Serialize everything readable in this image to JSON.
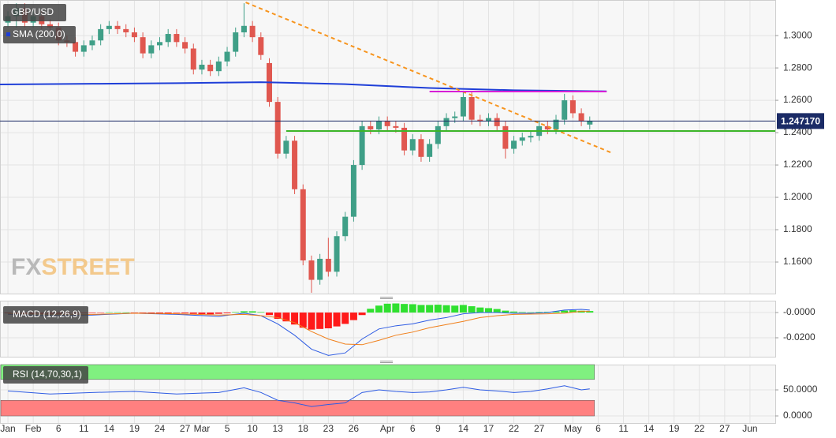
{
  "chart_data": [
    {
      "type": "candlestick",
      "title": "GBP/USD",
      "x": [
        0,
        1,
        2,
        3,
        4,
        5,
        6,
        7,
        8,
        9,
        10,
        11,
        12,
        13,
        14,
        15,
        16,
        17,
        18,
        19,
        20,
        21,
        22,
        23,
        24,
        25,
        26,
        27,
        28,
        29,
        30,
        31,
        32,
        33,
        34,
        35,
        36,
        37,
        38,
        39,
        40,
        41,
        42,
        43,
        44,
        45,
        46,
        47,
        48,
        49,
        50,
        51,
        52,
        53,
        54,
        55,
        56,
        57,
        58,
        59,
        60,
        61,
        62,
        63,
        64,
        65,
        66,
        67,
        68,
        69
      ],
      "open": [
        1.308,
        1.312,
        1.317,
        1.308,
        1.312,
        1.307,
        1.305,
        1.297,
        1.296,
        1.29,
        1.294,
        1.297,
        1.304,
        1.306,
        1.304,
        1.302,
        1.299,
        1.289,
        1.294,
        1.296,
        1.301,
        1.296,
        1.292,
        1.279,
        1.282,
        1.278,
        1.284,
        1.29,
        1.302,
        1.306,
        1.299,
        1.283,
        1.259,
        1.227,
        1.235,
        1.205,
        1.161,
        1.149,
        1.162,
        1.154,
        1.176,
        1.188,
        1.22,
        1.244,
        1.242,
        1.247,
        1.244,
        1.243,
        1.229,
        1.236,
        1.225,
        1.233,
        1.244,
        1.249,
        1.25,
        1.262,
        1.248,
        1.247,
        1.249,
        1.244,
        1.23,
        1.235,
        1.237,
        1.238,
        1.244,
        1.242,
        1.248,
        1.26,
        1.252,
        1.245
      ],
      "high": [
        1.315,
        1.32,
        1.32,
        1.315,
        1.315,
        1.31,
        1.308,
        1.3,
        1.299,
        1.297,
        1.3,
        1.307,
        1.309,
        1.309,
        1.307,
        1.305,
        1.302,
        1.297,
        1.299,
        1.304,
        1.304,
        1.299,
        1.295,
        1.285,
        1.285,
        1.287,
        1.293,
        1.305,
        1.32,
        1.309,
        1.302,
        1.286,
        1.262,
        1.238,
        1.238,
        1.208,
        1.164,
        1.165,
        1.175,
        1.179,
        1.191,
        1.223,
        1.247,
        1.247,
        1.25,
        1.25,
        1.247,
        1.246,
        1.239,
        1.239,
        1.236,
        1.247,
        1.252,
        1.253,
        1.265,
        1.265,
        1.251,
        1.252,
        1.252,
        1.247,
        1.238,
        1.24,
        1.241,
        1.247,
        1.247,
        1.251,
        1.264,
        1.263,
        1.255,
        1.25
      ],
      "low": [
        1.305,
        1.305,
        1.305,
        1.305,
        1.304,
        1.302,
        1.294,
        1.293,
        1.287,
        1.287,
        1.291,
        1.294,
        1.301,
        1.301,
        1.299,
        1.296,
        1.286,
        1.286,
        1.291,
        1.293,
        1.293,
        1.289,
        1.276,
        1.276,
        1.275,
        1.275,
        1.281,
        1.287,
        1.299,
        1.296,
        1.285,
        1.256,
        1.224,
        1.224,
        1.202,
        1.158,
        1.141,
        1.146,
        1.151,
        1.151,
        1.173,
        1.185,
        1.217,
        1.239,
        1.239,
        1.241,
        1.24,
        1.226,
        1.226,
        1.222,
        1.222,
        1.23,
        1.241,
        1.246,
        1.247,
        1.245,
        1.244,
        1.244,
        1.241,
        1.224,
        1.227,
        1.232,
        1.234,
        1.235,
        1.239,
        1.239,
        1.245,
        1.249,
        1.244,
        1.242
      ],
      "close": [
        1.312,
        1.317,
        1.308,
        1.312,
        1.307,
        1.305,
        1.297,
        1.296,
        1.29,
        1.294,
        1.297,
        1.304,
        1.306,
        1.304,
        1.302,
        1.299,
        1.289,
        1.294,
        1.296,
        1.301,
        1.296,
        1.292,
        1.279,
        1.282,
        1.278,
        1.284,
        1.29,
        1.302,
        1.306,
        1.299,
        1.288,
        1.259,
        1.227,
        1.235,
        1.205,
        1.161,
        1.149,
        1.162,
        1.154,
        1.176,
        1.188,
        1.22,
        1.244,
        1.242,
        1.247,
        1.244,
        1.243,
        1.229,
        1.236,
        1.225,
        1.233,
        1.244,
        1.249,
        1.25,
        1.262,
        1.248,
        1.247,
        1.249,
        1.244,
        1.23,
        1.235,
        1.237,
        1.238,
        1.244,
        1.242,
        1.248,
        1.26,
        1.252,
        1.247,
        1.2472
      ],
      "up_color": "#3f9f87",
      "down_color": "#e0574f",
      "xlim": [
        -0.94,
        91.0
      ],
      "xticks": [
        {
          "value": 0,
          "label": "Jan"
        },
        {
          "value": 3,
          "label": "Feb"
        },
        {
          "value": 6,
          "label": "6"
        },
        {
          "value": 9,
          "label": "11"
        },
        {
          "value": 12,
          "label": "14"
        },
        {
          "value": 15,
          "label": "19"
        },
        {
          "value": 18,
          "label": "24"
        },
        {
          "value": 21,
          "label": "27"
        },
        {
          "value": 23,
          "label": "Mar"
        },
        {
          "value": 26,
          "label": "5"
        },
        {
          "value": 29,
          "label": "10"
        },
        {
          "value": 32,
          "label": "13"
        },
        {
          "value": 35,
          "label": "18"
        },
        {
          "value": 38,
          "label": "23"
        },
        {
          "value": 41,
          "label": "26"
        },
        {
          "value": 45,
          "label": "Apr"
        },
        {
          "value": 48,
          "label": "6"
        },
        {
          "value": 51,
          "label": "9"
        },
        {
          "value": 54,
          "label": "14"
        },
        {
          "value": 57,
          "label": "17"
        },
        {
          "value": 60,
          "label": "22"
        },
        {
          "value": 63,
          "label": "27"
        },
        {
          "value": 67,
          "label": "May"
        },
        {
          "value": 70,
          "label": "6"
        },
        {
          "value": 73,
          "label": "11"
        },
        {
          "value": 76,
          "label": "14"
        },
        {
          "value": 79,
          "label": "19"
        },
        {
          "value": 82,
          "label": "22"
        },
        {
          "value": 85,
          "label": "27"
        },
        {
          "value": 88,
          "label": "Jun"
        }
      ],
      "ylim": [
        1.1405,
        1.322
      ],
      "yticks": [
        {
          "value": 1.3,
          "label": "1.3000"
        },
        {
          "value": 1.28,
          "label": "1.2800"
        },
        {
          "value": 1.26,
          "label": "1.2600"
        },
        {
          "value": 1.24,
          "label": "1.2400"
        },
        {
          "value": 1.22,
          "label": "1.2200"
        },
        {
          "value": 1.2,
          "label": "1.2000"
        },
        {
          "value": 1.18,
          "label": "1.1800"
        },
        {
          "value": 1.16,
          "label": "1.1600"
        }
      ],
      "grid": true,
      "overlays": [
        {
          "name": "SMA (200,0)",
          "color": "#1f3fd8",
          "x": [
            -0.94,
            10,
            20,
            30,
            40,
            50,
            60,
            70,
            71
          ],
          "values": [
            1.2698,
            1.2702,
            1.2706,
            1.2712,
            1.27,
            1.2676,
            1.2662,
            1.2656,
            1.2655
          ]
        }
      ],
      "trendlines": [
        {
          "color": "#f7941d",
          "style": "dashed",
          "x": [
            28.2,
            71.7
          ],
          "values": [
            1.3205,
            1.2273
          ]
        },
        {
          "color": "#d61fd6",
          "style": "solid",
          "x": [
            50,
            71
          ],
          "values": [
            1.2654,
            1.2654
          ]
        },
        {
          "color": "#3cb528",
          "style": "solid",
          "x": [
            33,
            91.0
          ],
          "values": [
            1.241,
            1.241
          ]
        }
      ],
      "last_price": {
        "value": 1.24717,
        "label": "1.247170"
      },
      "watermark": [
        "FX",
        "STREET"
      ]
    },
    {
      "type": "macd",
      "title": "MACD (12,26,9)",
      "x": [
        0,
        1,
        2,
        3,
        4,
        5,
        6,
        7,
        8,
        9,
        10,
        11,
        12,
        13,
        14,
        15,
        16,
        17,
        18,
        19,
        20,
        21,
        22,
        23,
        24,
        25,
        26,
        27,
        28,
        29,
        30,
        31,
        32,
        33,
        34,
        35,
        36,
        37,
        38,
        39,
        40,
        41,
        42,
        43,
        44,
        45,
        46,
        47,
        48,
        49,
        50,
        51,
        52,
        53,
        54,
        55,
        56,
        57,
        58,
        59,
        60,
        61,
        62,
        63,
        64,
        65,
        66,
        67,
        68,
        69
      ],
      "histogram": [
        -0.0006,
        -0.0008,
        -0.001,
        -0.001,
        -0.0012,
        -0.001,
        -0.001,
        -0.0008,
        -0.0008,
        -0.0006,
        -0.0004,
        -0.0002,
        0.0002,
        0.0002,
        0.0001,
        -0.0002,
        -0.0006,
        -0.0008,
        -0.0008,
        -0.0006,
        -0.0004,
        -0.0006,
        -0.001,
        -0.0012,
        -0.0014,
        -0.001,
        -0.0006,
        0.0004,
        0.001,
        0.001,
        0.0004,
        -0.002,
        -0.005,
        -0.007,
        -0.0095,
        -0.012,
        -0.0135,
        -0.013,
        -0.0125,
        -0.011,
        -0.009,
        -0.006,
        -0.002,
        0.003,
        0.0055,
        0.007,
        0.0072,
        0.0068,
        0.0066,
        0.006,
        0.006,
        0.0062,
        0.0058,
        0.0055,
        0.006,
        0.005,
        0.004,
        0.0035,
        0.0028,
        0.0015,
        0.0008,
        0.0004,
        0.0002,
        0.0004,
        0.0006,
        0.0008,
        0.0015,
        0.0018,
        0.0014,
        0.0012
      ],
      "up_color": "#2fe02f",
      "down_color": "#ff1a1a",
      "lines": [
        {
          "color": "#2d5be3",
          "x": [
            0,
            5,
            10,
            15,
            20,
            25,
            28,
            30,
            32,
            34,
            36,
            38,
            40,
            42,
            44,
            46,
            48,
            50,
            52,
            54,
            56,
            58,
            60,
            62,
            64,
            66,
            68,
            69
          ],
          "values": [
            -0.0015,
            -0.0025,
            -0.002,
            -0.0005,
            -0.0015,
            -0.003,
            -0.0005,
            -0.0025,
            -0.009,
            -0.018,
            -0.029,
            -0.034,
            -0.032,
            -0.021,
            -0.013,
            -0.0105,
            -0.009,
            -0.006,
            -0.004,
            -0.001,
            0,
            0,
            -0.0006,
            -0.0006,
            0,
            0.002,
            0.0025,
            0.002
          ]
        },
        {
          "color": "#f07f1a",
          "x": [
            0,
            5,
            10,
            15,
            20,
            25,
            28,
            30,
            32,
            34,
            36,
            38,
            40,
            42,
            44,
            46,
            48,
            50,
            52,
            54,
            56,
            58,
            60,
            62,
            64,
            66,
            68,
            69
          ],
          "values": [
            -0.001,
            -0.0015,
            -0.0015,
            -0.0005,
            -0.001,
            -0.002,
            -0.0015,
            -0.0025,
            -0.004,
            -0.008,
            -0.015,
            -0.021,
            -0.025,
            -0.0255,
            -0.022,
            -0.018,
            -0.0155,
            -0.012,
            -0.0095,
            -0.007,
            -0.004,
            -0.0025,
            -0.0015,
            -0.0012,
            -0.001,
            -0.0005,
            0.001,
            0.001
          ]
        }
      ],
      "ylim": [
        -0.035,
        0.0094
      ],
      "yticks": [
        {
          "value": 0,
          "label": "-0.0000"
        },
        {
          "value": -0.02,
          "label": "-0.0200"
        }
      ]
    },
    {
      "type": "rsi",
      "title": "RSI (14,70,30,1)",
      "x": [
        0,
        5,
        10,
        15,
        20,
        25,
        28,
        30,
        32,
        34,
        36,
        38,
        40,
        42,
        44,
        46,
        48,
        50,
        52,
        54,
        56,
        58,
        60,
        62,
        64,
        66,
        68,
        69
      ],
      "values": [
        48,
        42,
        45,
        47,
        42,
        45,
        54,
        45,
        30,
        25,
        18,
        22,
        25,
        45,
        50,
        47,
        45,
        46,
        50,
        55,
        50,
        48,
        45,
        47,
        52,
        58,
        50,
        52
      ],
      "color": "#2d5be3",
      "bands": [
        {
          "range": [
            70,
            98.5
          ],
          "color": "#80f080"
        },
        {
          "range": [
            0,
            30
          ],
          "color": "#ff8080"
        }
      ],
      "ylim": [
        -13.6,
        98.5
      ],
      "yticks": [
        {
          "value": 50,
          "label": "50.0000"
        },
        {
          "value": 0,
          "label": "0.0000"
        }
      ]
    }
  ]
}
